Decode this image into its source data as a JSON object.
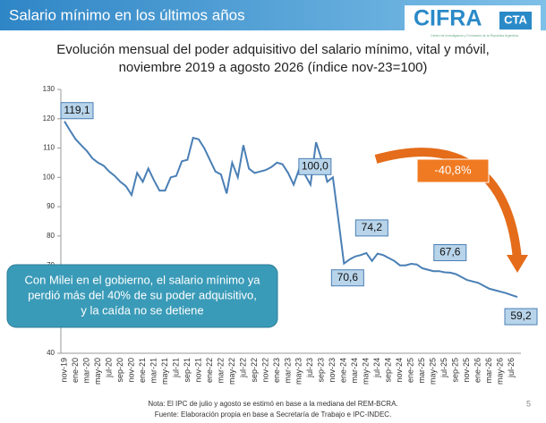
{
  "header": {
    "title": "Salario mínimo en los últimos años",
    "logo": "CIFRA",
    "logo_suffix": "CTA",
    "logo_subtitle": "Centro de Investigación y Formación de la República Argentina"
  },
  "chart_data": {
    "type": "line",
    "title": [
      "Evolución mensual del poder adquisitivo del salario mínimo, vital y móvil,",
      "noviembre 2019 a agosto 2026 (índice nov-23=100)"
    ],
    "categories": [
      "nov-19",
      null,
      "ene-20",
      null,
      "mar-20",
      null,
      "may-20",
      null,
      "jul-20",
      null,
      "sep-20",
      null,
      "nov-20",
      null,
      "ene-21",
      null,
      "mar-21",
      null,
      "may-21",
      null,
      "jul-21",
      null,
      "sep-21",
      null,
      "nov-21",
      null,
      "ene-22",
      null,
      "mar-22",
      null,
      "may-22",
      null,
      "jul-22",
      null,
      "sep-22",
      null,
      "nov-22",
      null,
      "ene-23",
      null,
      "mar-23",
      null,
      "may-23",
      null,
      "jul-23",
      null,
      "sep-23",
      null,
      "nov-23",
      null,
      "ene-24",
      null,
      "mar-24",
      null,
      "may-24",
      null,
      "jul-24",
      null,
      "sep-24",
      null,
      "nov-24",
      null,
      "ene-25",
      null,
      "mar-25",
      null,
      "may-25",
      null,
      "jul-25",
      null,
      "sep-25",
      null,
      "nov-25",
      null,
      "ene-26",
      null,
      "mar-26",
      null,
      "may-26",
      null,
      "jul-26",
      null
    ],
    "series": [
      {
        "color": "#4a7fb5",
        "values": [
          119.1,
          116,
          113,
          111,
          109,
          106.5,
          105,
          104,
          102,
          100.5,
          98.5,
          97,
          94,
          101.5,
          98.5,
          103,
          99,
          95.5,
          95.5,
          100,
          100.5,
          105.5,
          106,
          113.5,
          113,
          110,
          106,
          102,
          101,
          94.5,
          105,
          100,
          111,
          103,
          101.5,
          102,
          102.5,
          103.5,
          105,
          104.5,
          101.5,
          97.5,
          103,
          101,
          97.5,
          112,
          106,
          98.5,
          100,
          85.5,
          70.6,
          72,
          73,
          73.5,
          74.2,
          71.5,
          74,
          73.5,
          72.5,
          71.5,
          70,
          70,
          70.5,
          70.3,
          69,
          68.5,
          68,
          68,
          67.6,
          67.5,
          67,
          66,
          65,
          64.5,
          64,
          63,
          62,
          61.5,
          61,
          60.5,
          59.8,
          59.2
        ],
        "value_labels": [
          "119,1",
          null,
          null,
          null,
          null,
          null,
          null,
          null,
          null,
          null,
          null,
          null,
          null,
          null,
          null,
          null,
          null,
          null,
          null,
          null,
          null,
          null,
          null,
          null,
          null,
          null,
          null,
          null,
          null,
          null,
          null,
          null,
          null,
          null,
          null,
          null,
          null,
          null,
          null,
          null,
          null,
          null,
          null,
          null,
          null,
          null,
          null,
          null,
          "100,0",
          null,
          "70,6",
          null,
          null,
          null,
          "74,2",
          null,
          null,
          null,
          null,
          null,
          null,
          null,
          null,
          null,
          null,
          null,
          null,
          null,
          "67,6",
          null,
          null,
          null,
          null,
          null,
          null,
          null,
          null,
          null,
          null,
          null,
          null,
          "59,2"
        ]
      }
    ],
    "ylim": [
      40,
      130
    ],
    "yticks": [
      40,
      50,
      60,
      70,
      80,
      90,
      100,
      110,
      120,
      130
    ],
    "annotations": {
      "change": "-40,8%",
      "callout": [
        "Con Milei en el gobierno, el salario mínimo ya",
        "perdió más del 40% de su poder adquisitivo,",
        "y la caída no se detiene"
      ]
    }
  },
  "footer": {
    "notes": [
      "Nota: El IPC de julio y agosto se estimó en base a la mediana del REM-BCRA.",
      "Fuente: Elaboración propia en base a Secretaría de Trabajo e IPC-INDEC."
    ],
    "page": "5"
  }
}
